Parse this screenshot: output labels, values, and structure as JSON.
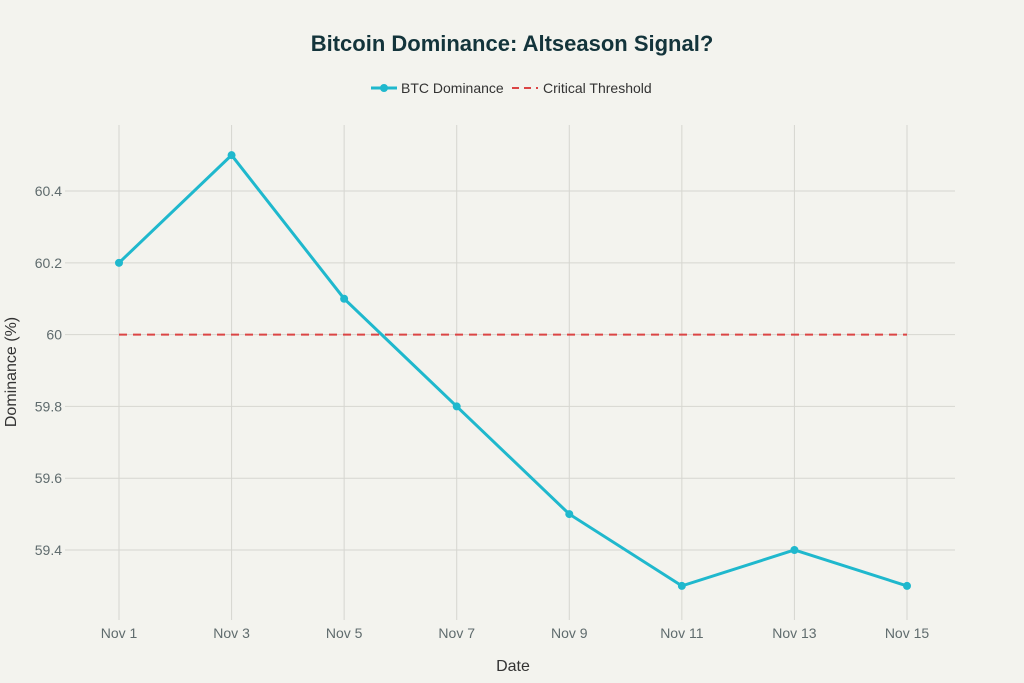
{
  "chart_data": {
    "type": "line",
    "title": "Bitcoin Dominance: Altseason Signal?",
    "xlabel": "Date",
    "ylabel": "Dominance (%)",
    "categories": [
      "Nov 1",
      "Nov 3",
      "Nov 5",
      "Nov 7",
      "Nov 9",
      "Nov 11",
      "Nov 13",
      "Nov 15"
    ],
    "yticks": [
      59.4,
      59.6,
      59.8,
      60,
      60.2,
      60.4
    ],
    "ytick_labels": [
      "59.4",
      "59.6",
      "59.8",
      "60",
      "60.2",
      "60.4"
    ],
    "ylim": [
      59.205,
      60.584
    ],
    "grid": true,
    "legend_position": "top-center",
    "series": [
      {
        "name": "BTC Dominance",
        "values": [
          60.2,
          60.5,
          60.1,
          59.8,
          59.5,
          59.3,
          59.4,
          59.3
        ],
        "color": "#1fb8cd",
        "style": "solid-markers"
      },
      {
        "name": "Critical Threshold",
        "values": [
          60,
          60,
          60,
          60,
          60,
          60,
          60,
          60
        ],
        "color": "#db4545",
        "style": "dashed"
      }
    ]
  }
}
